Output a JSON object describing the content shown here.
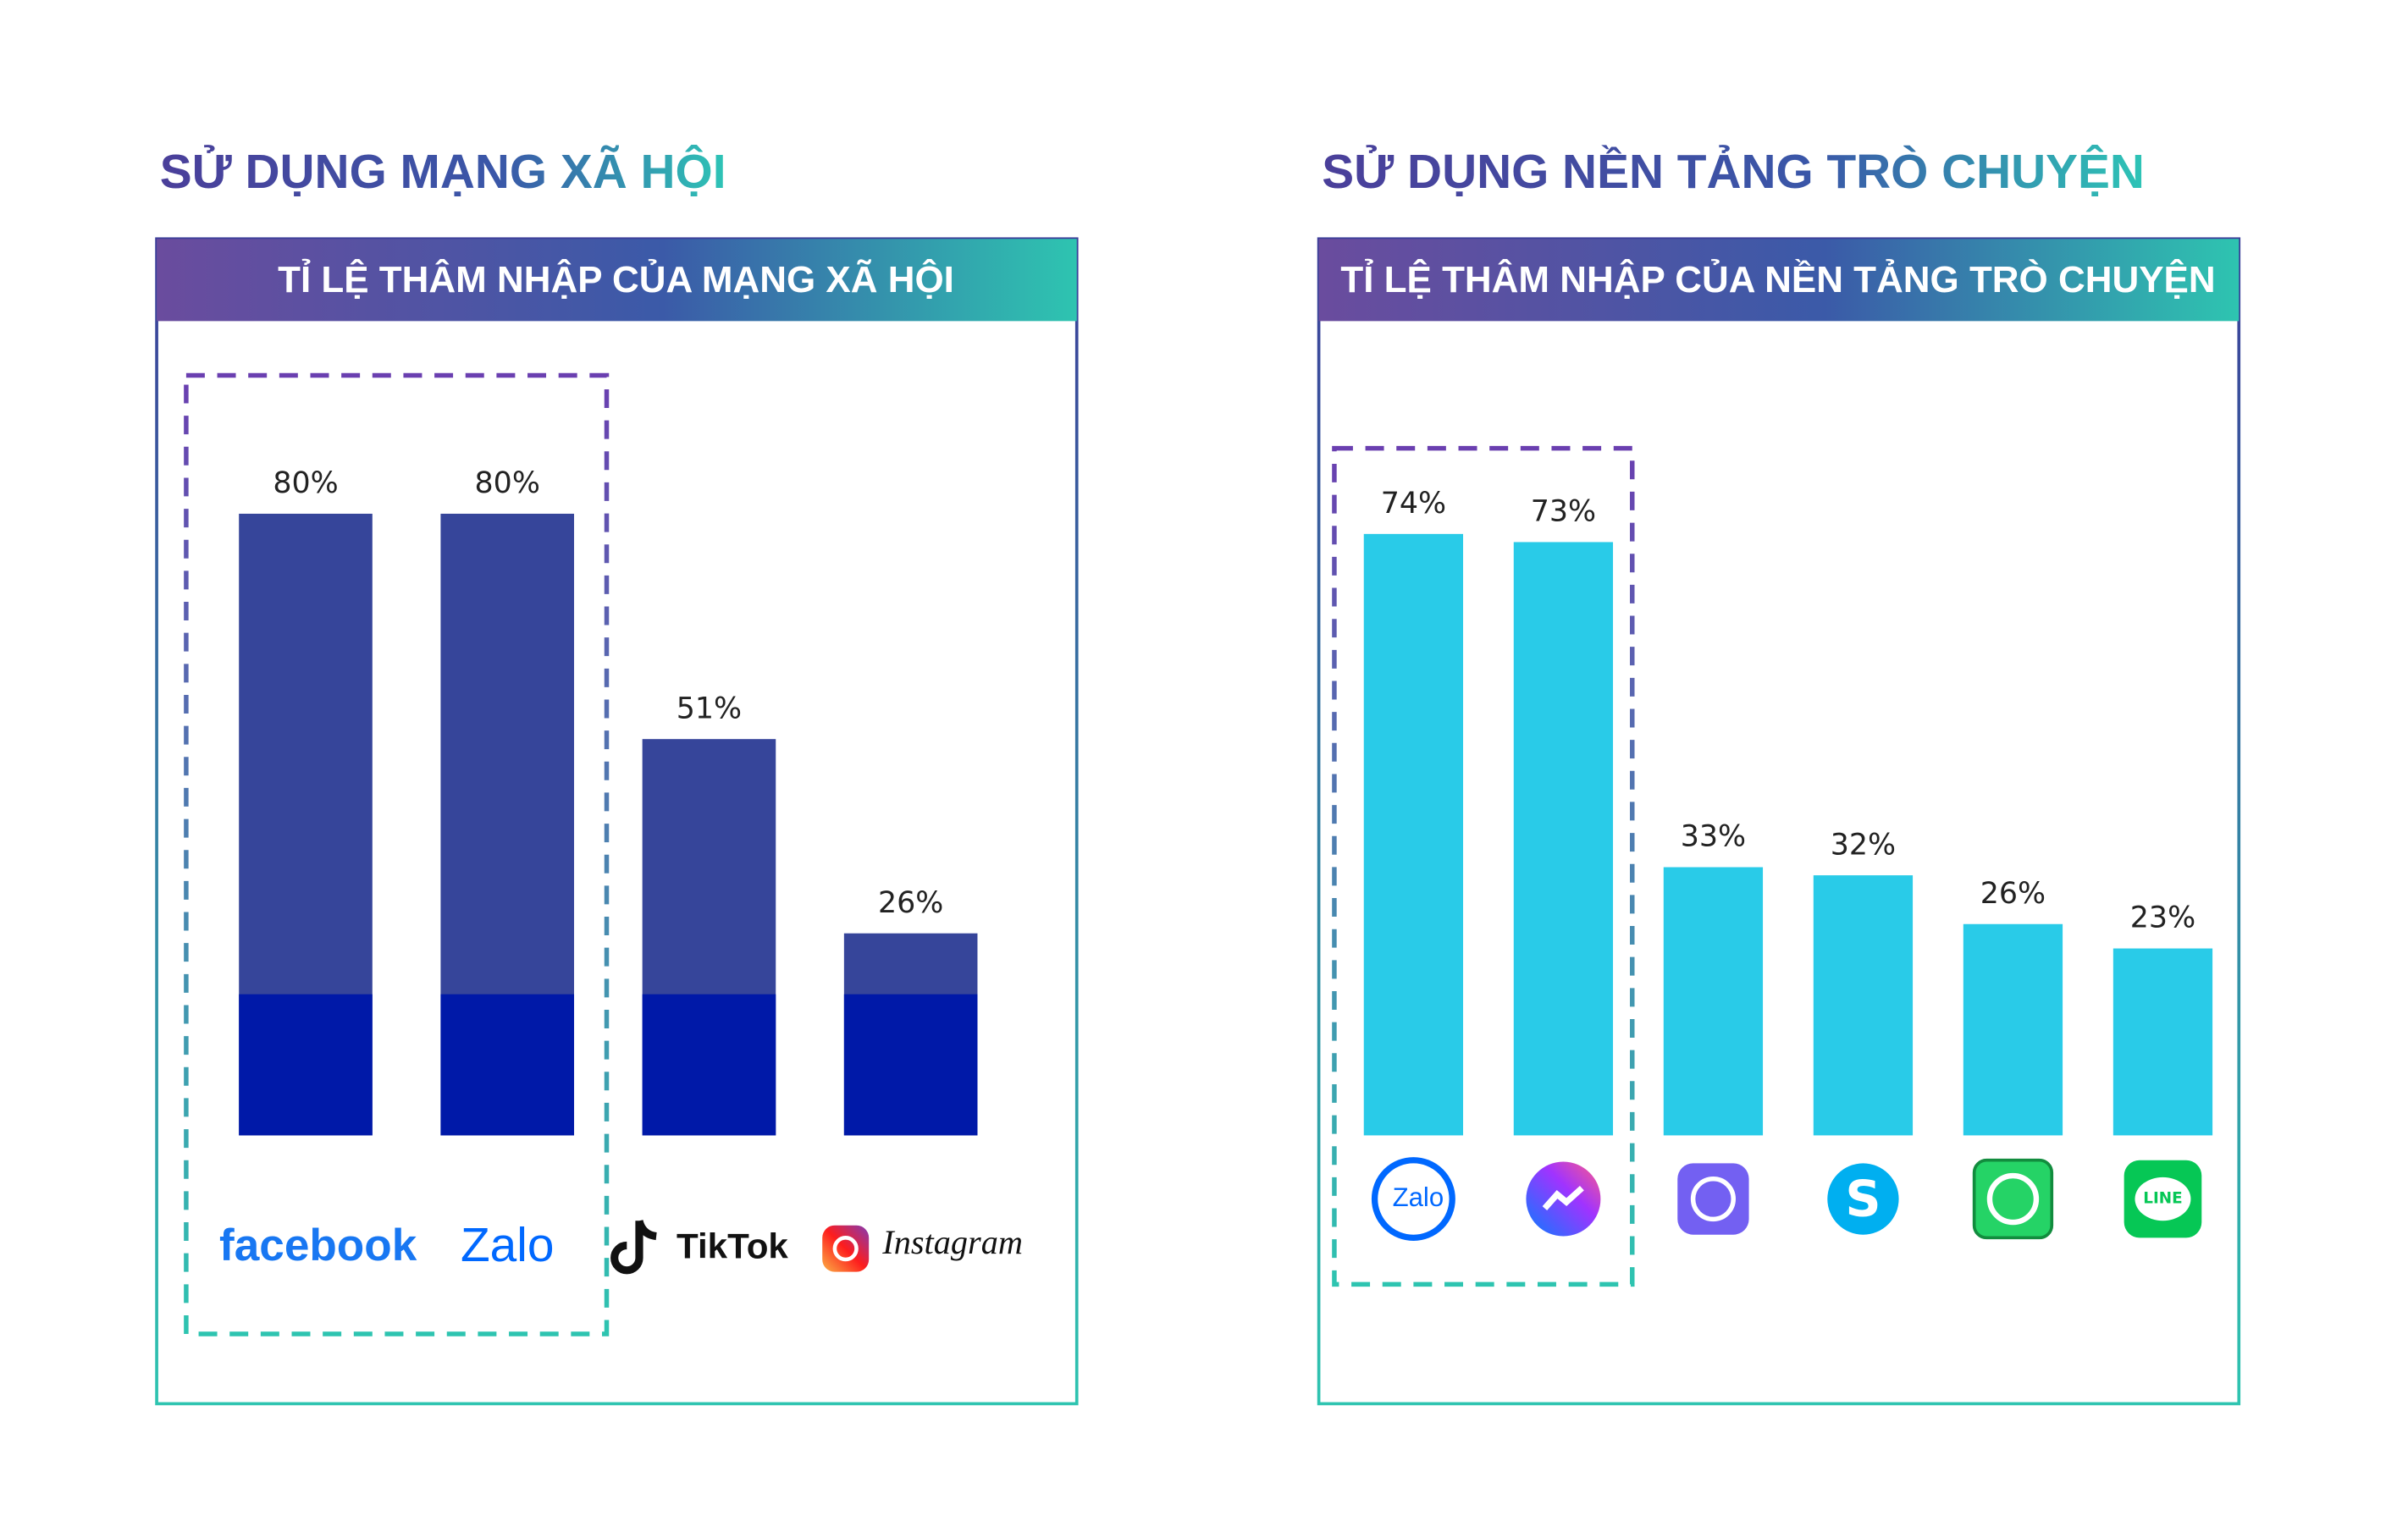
{
  "chart_data": [
    {
      "type": "bar",
      "title": "SỬ DỤNG MẠNG XÃ HỘI",
      "subtitle": "TỈ LỆ THÂM NHẬP CỦA MẠNG XÃ HỘI",
      "categories": [
        "facebook",
        "Zalo",
        "TikTok",
        "Instagram"
      ],
      "values": [
        80,
        80,
        51,
        26
      ],
      "value_labels": [
        "80%",
        "80%",
        "51%",
        "26%"
      ],
      "color": "#36459a"
    },
    {
      "type": "bar",
      "title": "SỬ DỤNG NỀN TẢNG TRÒ CHUYỆN",
      "subtitle": "TỈ LỆ THÂM NHẬP CỦA NỀN TẢNG TRÒ CHUYỆN",
      "categories": [
        "Zalo",
        null,
        null,
        null,
        null,
        "LINE"
      ],
      "values": [
        74,
        73,
        33,
        32,
        26,
        23
      ],
      "value_labels": [
        "74%",
        "73%",
        "33%",
        "32%",
        "26%",
        "23%"
      ],
      "color": "#29cbe8"
    }
  ]
}
